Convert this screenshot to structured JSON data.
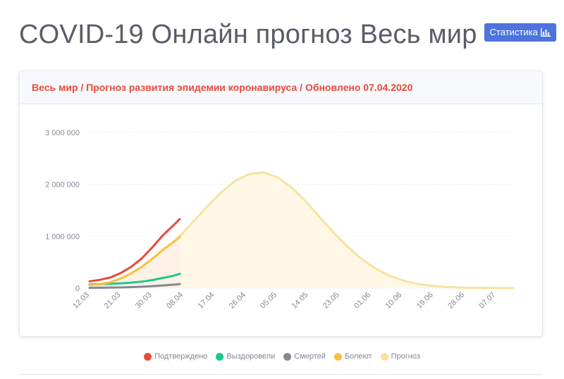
{
  "header": {
    "title": "COVID-19 Онлайн прогноз Весь мир",
    "stats_button_label": "Статистика",
    "stats_icon": "bar-chart-icon"
  },
  "card": {
    "title": "Весь мир / Прогноз развития эпидемии коронавируса / Обновлено 07.04.2020"
  },
  "colors": {
    "confirmed": "#e74a3b",
    "recovered": "#1cc88a",
    "deaths": "#858796",
    "active": "#f6c23e",
    "forecast": "#f8e2a0",
    "forecast_fill": "#fff8e6",
    "accent": "#4e73df"
  },
  "legend": [
    {
      "key": "confirmed",
      "label": "Подтверждено"
    },
    {
      "key": "recovered",
      "label": "Выздоровели"
    },
    {
      "key": "deaths",
      "label": "Смертей"
    },
    {
      "key": "active",
      "label": "Болеют"
    },
    {
      "key": "forecast",
      "label": "Прогноз"
    }
  ],
  "chart_data": {
    "type": "line",
    "ylim": [
      0,
      3000000
    ],
    "yticks": [
      0,
      1000000,
      2000000,
      3000000
    ],
    "ytick_labels": [
      "0",
      "1 000 000",
      "2 000 000",
      "3 000 000"
    ],
    "xlim": [
      "2020-03-12",
      "2020-07-12"
    ],
    "xtick_dates": [
      "2020-03-12",
      "2020-03-21",
      "2020-03-30",
      "2020-04-08",
      "2020-04-17",
      "2020-04-26",
      "2020-05-05",
      "2020-05-14",
      "2020-05-23",
      "2020-06-01",
      "2020-06-10",
      "2020-06-19",
      "2020-06-28",
      "2020-07-07"
    ],
    "xtick_labels": [
      "12.03",
      "21.03",
      "30.03",
      "08.04",
      "17.04",
      "26.04",
      "05.05",
      "14.05",
      "23.05",
      "01.06",
      "10.06",
      "19.06",
      "28.06",
      "07.07"
    ],
    "grid": true,
    "legend_position": "bottom",
    "series": [
      {
        "name": "Подтверждено",
        "key": "confirmed",
        "x": [
          "2020-03-12",
          "2020-03-15",
          "2020-03-18",
          "2020-03-21",
          "2020-03-24",
          "2020-03-27",
          "2020-03-30",
          "2020-04-02",
          "2020-04-05",
          "2020-04-07"
        ],
        "y": [
          130000,
          160000,
          205000,
          290000,
          410000,
          570000,
          780000,
          1010000,
          1200000,
          1330000
        ]
      },
      {
        "name": "Болеют",
        "key": "active",
        "x": [
          "2020-03-12",
          "2020-03-15",
          "2020-03-18",
          "2020-03-21",
          "2020-03-24",
          "2020-03-27",
          "2020-03-30",
          "2020-04-02",
          "2020-04-05",
          "2020-04-07"
        ],
        "y": [
          55000,
          75000,
          115000,
          185000,
          285000,
          410000,
          560000,
          730000,
          880000,
          990000
        ]
      },
      {
        "name": "Выздоровели",
        "key": "recovered",
        "x": [
          "2020-03-12",
          "2020-03-15",
          "2020-03-18",
          "2020-03-21",
          "2020-03-24",
          "2020-03-27",
          "2020-03-30",
          "2020-04-02",
          "2020-04-05",
          "2020-04-07"
        ],
        "y": [
          70000,
          78000,
          85000,
          92000,
          105000,
          125000,
          155000,
          195000,
          235000,
          275000
        ]
      },
      {
        "name": "Смертей",
        "key": "deaths",
        "x": [
          "2020-03-12",
          "2020-03-15",
          "2020-03-18",
          "2020-03-21",
          "2020-03-24",
          "2020-03-27",
          "2020-03-30",
          "2020-04-02",
          "2020-04-05",
          "2020-04-07"
        ],
        "y": [
          5000,
          7000,
          9500,
          13000,
          19000,
          27000,
          38000,
          52000,
          66000,
          78000
        ]
      },
      {
        "name": "Прогноз",
        "key": "forecast",
        "x": [
          "2020-04-07",
          "2020-04-11",
          "2020-04-15",
          "2020-04-19",
          "2020-04-23",
          "2020-04-27",
          "2020-05-01",
          "2020-05-05",
          "2020-05-09",
          "2020-05-13",
          "2020-05-17",
          "2020-05-21",
          "2020-05-25",
          "2020-05-29",
          "2020-06-02",
          "2020-06-06",
          "2020-06-10",
          "2020-06-14",
          "2020-06-18",
          "2020-06-22",
          "2020-06-26",
          "2020-06-30",
          "2020-07-04",
          "2020-07-08",
          "2020-07-12"
        ],
        "y": [
          1000000,
          1290000,
          1580000,
          1850000,
          2070000,
          2200000,
          2230000,
          2140000,
          1950000,
          1690000,
          1390000,
          1090000,
          820000,
          580000,
          390000,
          250000,
          150000,
          85000,
          47000,
          25000,
          13000,
          6000,
          3000,
          1500,
          1000
        ]
      }
    ]
  }
}
